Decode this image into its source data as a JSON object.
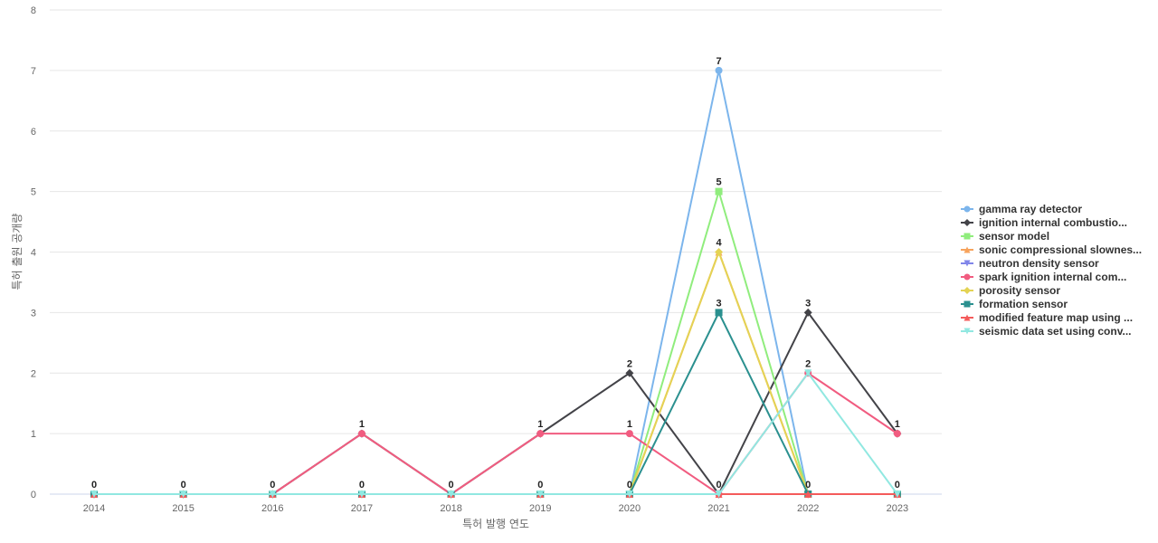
{
  "chart_data": {
    "type": "line",
    "xlabel": "특허 발행 연도",
    "ylabel": "특허 출원 공개량",
    "ylim": [
      0,
      8
    ],
    "yticks": [
      "0",
      "1",
      "2",
      "3",
      "4",
      "5",
      "6",
      "7",
      "8"
    ],
    "categories": [
      "2014",
      "2015",
      "2016",
      "2017",
      "2018",
      "2019",
      "2020",
      "2021",
      "2022",
      "2023"
    ],
    "grid": true,
    "legend_position": "right",
    "series": [
      {
        "name": "gamma ray detector",
        "color": "#7cb5ec",
        "marker": "circle",
        "values": [
          0,
          0,
          0,
          0,
          0,
          0,
          0,
          7,
          0,
          0
        ]
      },
      {
        "name": "ignition internal combustio...",
        "color": "#434348",
        "marker": "diamond",
        "values": [
          0,
          0,
          0,
          1,
          0,
          1,
          2,
          0,
          3,
          1
        ]
      },
      {
        "name": "sensor model",
        "color": "#90ed7d",
        "marker": "square",
        "values": [
          0,
          0,
          0,
          0,
          0,
          0,
          0,
          5,
          0,
          0
        ]
      },
      {
        "name": "sonic compressional slownes...",
        "color": "#f7a35c",
        "marker": "triangle",
        "values": [
          0,
          0,
          0,
          0,
          0,
          0,
          0,
          4,
          0,
          0
        ]
      },
      {
        "name": "neutron density sensor",
        "color": "#8085e9",
        "marker": "triangle-down",
        "values": [
          0,
          0,
          0,
          0,
          0,
          0,
          0,
          0,
          0,
          0
        ]
      },
      {
        "name": "spark ignition internal com...",
        "color": "#f15c80",
        "marker": "circle",
        "values": [
          0,
          0,
          0,
          1,
          0,
          1,
          1,
          0,
          2,
          1
        ]
      },
      {
        "name": "porosity sensor",
        "color": "#e4d354",
        "marker": "diamond",
        "values": [
          0,
          0,
          0,
          0,
          0,
          0,
          0,
          4,
          0,
          0
        ]
      },
      {
        "name": "formation sensor",
        "color": "#2b908f",
        "marker": "square",
        "values": [
          0,
          0,
          0,
          0,
          0,
          0,
          0,
          3,
          0,
          0
        ]
      },
      {
        "name": "modified feature map using ...",
        "color": "#f45b5b",
        "marker": "triangle",
        "values": [
          0,
          0,
          0,
          0,
          0,
          0,
          0,
          0,
          0,
          0
        ]
      },
      {
        "name": "seismic data set using conv...",
        "color": "#91e8e1",
        "marker": "triangle-down",
        "values": [
          0,
          0,
          0,
          0,
          0,
          0,
          0,
          0,
          2,
          0
        ]
      }
    ],
    "data_labels": [
      {
        "x": "2014",
        "value": "0"
      },
      {
        "x": "2015",
        "value": "0"
      },
      {
        "x": "2016",
        "value": "0"
      },
      {
        "x": "2017",
        "value": "1"
      },
      {
        "x": "2017",
        "value": "0"
      },
      {
        "x": "2018",
        "value": "0"
      },
      {
        "x": "2019",
        "value": "1"
      },
      {
        "x": "2019",
        "value": "0"
      },
      {
        "x": "2020",
        "value": "2"
      },
      {
        "x": "2020",
        "value": "1"
      },
      {
        "x": "2020",
        "value": "0"
      },
      {
        "x": "2021",
        "value": "7"
      },
      {
        "x": "2021",
        "value": "5"
      },
      {
        "x": "2021",
        "value": "4"
      },
      {
        "x": "2021",
        "value": "3"
      },
      {
        "x": "2021",
        "value": "0"
      },
      {
        "x": "2022",
        "value": "3"
      },
      {
        "x": "2022",
        "value": "2"
      },
      {
        "x": "2022",
        "value": "0"
      },
      {
        "x": "2023",
        "value": "1"
      },
      {
        "x": "2023",
        "value": "0"
      }
    ]
  }
}
